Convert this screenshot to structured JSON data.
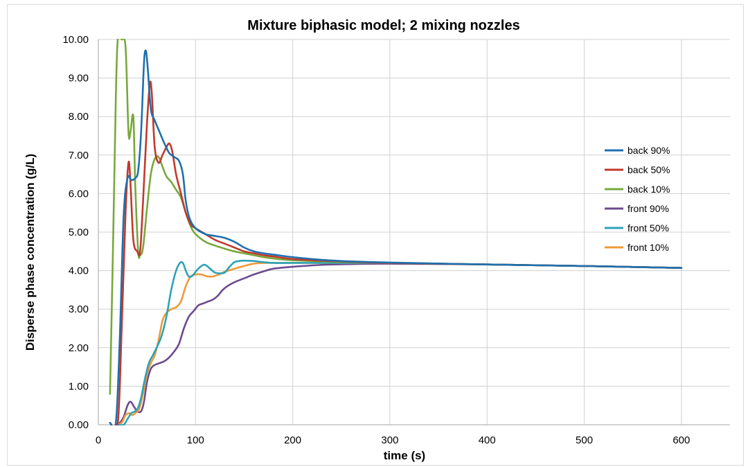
{
  "chart_data": {
    "type": "line",
    "title": "Mixture biphasic model; 2 mixing nozzles",
    "xlabel": "time (s)",
    "ylabel": "Disperse phase concentration (g/L)",
    "xlim": [
      0,
      650
    ],
    "ylim": [
      0,
      10
    ],
    "xticks": [
      0,
      100,
      200,
      300,
      400,
      500,
      600
    ],
    "yticks": [
      0,
      1,
      2,
      3,
      4,
      5,
      6,
      7,
      8,
      9,
      10
    ],
    "xtick_labels": [
      "0",
      "100",
      "200",
      "300",
      "400",
      "500",
      "600"
    ],
    "ytick_labels": [
      "0.00",
      "1.00",
      "2.00",
      "3.00",
      "4.00",
      "5.00",
      "6.00",
      "7.00",
      "8.00",
      "9.00",
      "10.00"
    ],
    "grid": "major",
    "legend_position": "right",
    "series": [
      {
        "name": "back 90%",
        "color": "#1f6fae",
        "points": [
          [
            12,
            0.05
          ],
          [
            18,
            0.05
          ],
          [
            22,
            2.2
          ],
          [
            26,
            5.4
          ],
          [
            30,
            6.4
          ],
          [
            34,
            6.35
          ],
          [
            38,
            6.4
          ],
          [
            41,
            6.6
          ],
          [
            44,
            7.6
          ],
          [
            47,
            9.4
          ],
          [
            49,
            9.7
          ],
          [
            51,
            9.2
          ],
          [
            54,
            8.2
          ],
          [
            58,
            7.9
          ],
          [
            63,
            7.6
          ],
          [
            68,
            7.3
          ],
          [
            73,
            7.05
          ],
          [
            78,
            6.95
          ],
          [
            83,
            6.85
          ],
          [
            87,
            6.5
          ],
          [
            90,
            5.8
          ],
          [
            94,
            5.35
          ],
          [
            100,
            5.1
          ],
          [
            110,
            4.95
          ],
          [
            120,
            4.9
          ],
          [
            130,
            4.85
          ],
          [
            140,
            4.75
          ],
          [
            150,
            4.6
          ],
          [
            160,
            4.5
          ],
          [
            170,
            4.45
          ],
          [
            185,
            4.4
          ],
          [
            200,
            4.35
          ],
          [
            230,
            4.28
          ],
          [
            260,
            4.24
          ],
          [
            300,
            4.21
          ],
          [
            400,
            4.16
          ],
          [
            500,
            4.12
          ],
          [
            600,
            4.07
          ]
        ]
      },
      {
        "name": "back 50%",
        "color": "#c0392b",
        "points": [
          [
            12,
            0.05
          ],
          [
            20,
            0.05
          ],
          [
            24,
            2.5
          ],
          [
            28,
            5.5
          ],
          [
            31,
            6.8
          ],
          [
            33,
            6.3
          ],
          [
            36,
            4.8
          ],
          [
            40,
            4.5
          ],
          [
            43,
            4.5
          ],
          [
            46,
            5.8
          ],
          [
            50,
            7.8
          ],
          [
            53,
            8.85
          ],
          [
            55,
            8.6
          ],
          [
            58,
            7.2
          ],
          [
            62,
            6.8
          ],
          [
            66,
            7.0
          ],
          [
            70,
            7.2
          ],
          [
            73,
            7.3
          ],
          [
            76,
            7.1
          ],
          [
            80,
            6.5
          ],
          [
            85,
            6.0
          ],
          [
            90,
            5.5
          ],
          [
            95,
            5.2
          ],
          [
            100,
            5.1
          ],
          [
            110,
            4.95
          ],
          [
            120,
            4.8
          ],
          [
            130,
            4.7
          ],
          [
            140,
            4.6
          ],
          [
            150,
            4.5
          ],
          [
            160,
            4.45
          ],
          [
            170,
            4.4
          ],
          [
            185,
            4.35
          ],
          [
            200,
            4.3
          ],
          [
            230,
            4.26
          ],
          [
            260,
            4.23
          ],
          [
            300,
            4.2
          ],
          [
            400,
            4.16
          ],
          [
            500,
            4.12
          ],
          [
            600,
            4.07
          ]
        ]
      },
      {
        "name": "back 10%",
        "color": "#77a83b",
        "points": [
          [
            12,
            0.8
          ],
          [
            15,
            4.5
          ],
          [
            18,
            8.5
          ],
          [
            20,
            10.0
          ],
          [
            24,
            10.0
          ],
          [
            28,
            9.8
          ],
          [
            31,
            7.6
          ],
          [
            33,
            7.6
          ],
          [
            36,
            8.0
          ],
          [
            38,
            6.2
          ],
          [
            41,
            4.5
          ],
          [
            43,
            4.4
          ],
          [
            46,
            4.6
          ],
          [
            50,
            5.6
          ],
          [
            54,
            6.5
          ],
          [
            58,
            6.9
          ],
          [
            62,
            6.95
          ],
          [
            66,
            6.7
          ],
          [
            70,
            6.45
          ],
          [
            75,
            6.3
          ],
          [
            80,
            6.1
          ],
          [
            85,
            5.9
          ],
          [
            90,
            5.5
          ],
          [
            95,
            5.15
          ],
          [
            100,
            4.95
          ],
          [
            110,
            4.75
          ],
          [
            120,
            4.65
          ],
          [
            130,
            4.57
          ],
          [
            140,
            4.5
          ],
          [
            150,
            4.45
          ],
          [
            160,
            4.4
          ],
          [
            170,
            4.35
          ],
          [
            185,
            4.3
          ],
          [
            200,
            4.27
          ],
          [
            230,
            4.24
          ],
          [
            260,
            4.22
          ],
          [
            300,
            4.2
          ],
          [
            400,
            4.16
          ],
          [
            500,
            4.12
          ],
          [
            600,
            4.07
          ]
        ]
      },
      {
        "name": "front 90%",
        "color": "#6c4a8e",
        "points": [
          [
            18,
            0.0
          ],
          [
            22,
            0.05
          ],
          [
            26,
            0.2
          ],
          [
            30,
            0.5
          ],
          [
            33,
            0.6
          ],
          [
            36,
            0.5
          ],
          [
            40,
            0.35
          ],
          [
            44,
            0.35
          ],
          [
            47,
            0.6
          ],
          [
            50,
            1.1
          ],
          [
            54,
            1.45
          ],
          [
            58,
            1.55
          ],
          [
            63,
            1.6
          ],
          [
            68,
            1.65
          ],
          [
            73,
            1.75
          ],
          [
            78,
            1.9
          ],
          [
            83,
            2.1
          ],
          [
            88,
            2.5
          ],
          [
            93,
            2.8
          ],
          [
            98,
            2.95
          ],
          [
            103,
            3.1
          ],
          [
            108,
            3.15
          ],
          [
            113,
            3.2
          ],
          [
            118,
            3.25
          ],
          [
            123,
            3.35
          ],
          [
            128,
            3.5
          ],
          [
            133,
            3.6
          ],
          [
            140,
            3.7
          ],
          [
            150,
            3.8
          ],
          [
            160,
            3.9
          ],
          [
            170,
            3.98
          ],
          [
            180,
            4.05
          ],
          [
            200,
            4.1
          ],
          [
            230,
            4.15
          ],
          [
            260,
            4.17
          ],
          [
            300,
            4.18
          ],
          [
            400,
            4.16
          ],
          [
            500,
            4.12
          ],
          [
            600,
            4.07
          ]
        ]
      },
      {
        "name": "front 50%",
        "color": "#2ba3b5",
        "points": [
          [
            18,
            0.0
          ],
          [
            26,
            0.0
          ],
          [
            30,
            0.15
          ],
          [
            34,
            0.3
          ],
          [
            38,
            0.35
          ],
          [
            41,
            0.45
          ],
          [
            44,
            0.7
          ],
          [
            48,
            1.2
          ],
          [
            52,
            1.6
          ],
          [
            56,
            1.8
          ],
          [
            60,
            2.0
          ],
          [
            65,
            2.3
          ],
          [
            70,
            2.8
          ],
          [
            75,
            3.5
          ],
          [
            80,
            4.0
          ],
          [
            84,
            4.2
          ],
          [
            87,
            4.2
          ],
          [
            90,
            4.0
          ],
          [
            93,
            3.85
          ],
          [
            97,
            3.87
          ],
          [
            101,
            4.0
          ],
          [
            106,
            4.12
          ],
          [
            110,
            4.15
          ],
          [
            115,
            4.05
          ],
          [
            120,
            3.95
          ],
          [
            125,
            3.93
          ],
          [
            130,
            3.95
          ],
          [
            135,
            4.1
          ],
          [
            140,
            4.22
          ],
          [
            145,
            4.25
          ],
          [
            150,
            4.26
          ],
          [
            160,
            4.25
          ],
          [
            170,
            4.22
          ],
          [
            180,
            4.2
          ],
          [
            200,
            4.2
          ],
          [
            250,
            4.2
          ],
          [
            300,
            4.2
          ],
          [
            400,
            4.16
          ],
          [
            500,
            4.12
          ],
          [
            600,
            4.07
          ]
        ]
      },
      {
        "name": "front 10%",
        "color": "#ee9a3a",
        "points": [
          [
            18,
            0.0
          ],
          [
            24,
            0.05
          ],
          [
            28,
            0.25
          ],
          [
            32,
            0.3
          ],
          [
            35,
            0.25
          ],
          [
            38,
            0.3
          ],
          [
            42,
            0.4
          ],
          [
            46,
            0.8
          ],
          [
            50,
            1.3
          ],
          [
            54,
            1.6
          ],
          [
            58,
            1.8
          ],
          [
            62,
            2.2
          ],
          [
            66,
            2.7
          ],
          [
            70,
            2.9
          ],
          [
            75,
            3.0
          ],
          [
            80,
            3.05
          ],
          [
            85,
            3.2
          ],
          [
            90,
            3.6
          ],
          [
            95,
            3.85
          ],
          [
            100,
            3.9
          ],
          [
            106,
            3.9
          ],
          [
            112,
            3.85
          ],
          [
            118,
            3.85
          ],
          [
            124,
            3.9
          ],
          [
            130,
            3.97
          ],
          [
            140,
            4.05
          ],
          [
            150,
            4.12
          ],
          [
            160,
            4.18
          ],
          [
            170,
            4.2
          ],
          [
            180,
            4.2
          ],
          [
            200,
            4.2
          ],
          [
            250,
            4.2
          ],
          [
            300,
            4.2
          ],
          [
            400,
            4.16
          ],
          [
            500,
            4.12
          ],
          [
            600,
            4.07
          ]
        ]
      }
    ]
  }
}
